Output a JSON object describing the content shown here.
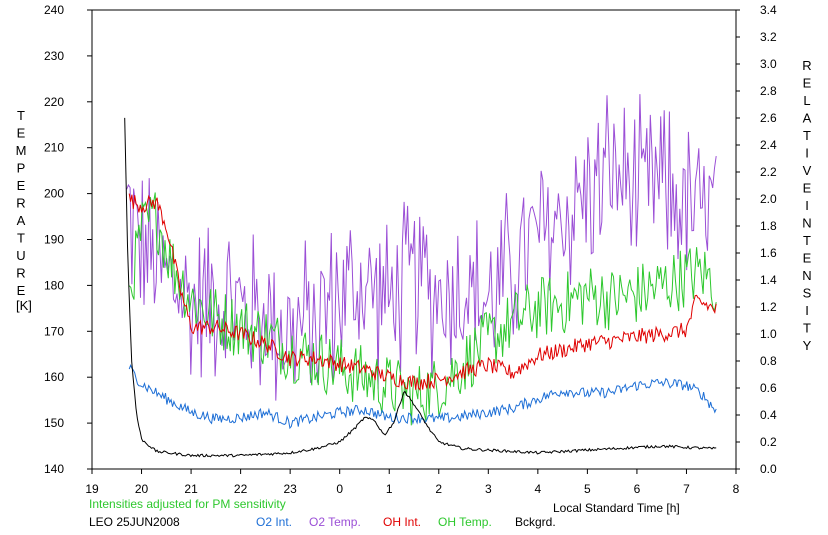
{
  "chart_data": {
    "type": "line",
    "left_axis": {
      "label_letters": [
        "T",
        "E",
        "M",
        "P",
        "E",
        "R",
        "A",
        "T",
        "U",
        "R",
        "E"
      ],
      "unit": "[K]",
      "range": [
        140,
        240
      ],
      "ticks": [
        140,
        150,
        160,
        170,
        180,
        190,
        200,
        210,
        220,
        230,
        240
      ]
    },
    "right_axis": {
      "label_letters": [
        "R",
        "E",
        "L",
        "A",
        "T",
        "I",
        "V",
        "E"
      ],
      "label_letters_2": [
        "I",
        "N",
        "T",
        "E",
        "N",
        "S",
        "I",
        "T",
        "Y"
      ],
      "range": [
        0.0,
        3.4
      ],
      "ticks": [
        "0.0",
        "0.2",
        "0.4",
        "0.6",
        "0.8",
        "1.0",
        "1.2",
        "1.4",
        "1.6",
        "1.8",
        "2.0",
        "2.2",
        "2.4",
        "2.6",
        "2.8",
        "3.0",
        "3.2",
        "3.4"
      ]
    },
    "x_axis": {
      "label": "Local Standard Time [h]",
      "range": [
        19,
        32
      ],
      "tick_labels": [
        "19",
        "20",
        "21",
        "22",
        "23",
        "0",
        "1",
        "2",
        "3",
        "4",
        "5",
        "6",
        "7",
        "8"
      ]
    },
    "note": "Intensities adjusted for PM sensitivity",
    "station_date": "LEO 25JUN2008",
    "legend": [
      {
        "label": "O2 Int.",
        "color": "#1e6fd6"
      },
      {
        "label": "O2 Temp.",
        "color": "#9b4fd6"
      },
      {
        "label": "OH Int.",
        "color": "#e00000"
      },
      {
        "label": "OH Temp.",
        "color": "#2ec82e"
      },
      {
        "label": "Bckgrd.",
        "color": "#000000"
      }
    ],
    "series": [
      {
        "name": "O2 Temp.",
        "axis": "left",
        "color": "#9b4fd6",
        "mean": [
          [
            19.7,
            197
          ],
          [
            20.0,
            188
          ],
          [
            20.5,
            182
          ],
          [
            21.0,
            176
          ],
          [
            21.5,
            178
          ],
          [
            22.0,
            175
          ],
          [
            22.5,
            173
          ],
          [
            23.0,
            170
          ],
          [
            23.5,
            172
          ],
          [
            24.0,
            178
          ],
          [
            24.5,
            180
          ],
          [
            25.0,
            176
          ],
          [
            25.5,
            182
          ],
          [
            26.0,
            178
          ],
          [
            26.5,
            180
          ],
          [
            27.0,
            176
          ],
          [
            27.5,
            184
          ],
          [
            28.0,
            190
          ],
          [
            28.5,
            195
          ],
          [
            29.0,
            200
          ],
          [
            29.5,
            205
          ],
          [
            30.0,
            200
          ],
          [
            30.5,
            202
          ],
          [
            31.0,
            197
          ],
          [
            31.3,
            195
          ],
          [
            31.6,
            198
          ]
        ],
        "amp": 14
      },
      {
        "name": "OH Temp.",
        "axis": "left",
        "color": "#2ec82e",
        "mean": [
          [
            19.75,
            178
          ],
          [
            20.0,
            192
          ],
          [
            20.3,
            195
          ],
          [
            20.6,
            185
          ],
          [
            21.0,
            177
          ],
          [
            21.5,
            173
          ],
          [
            22.0,
            171
          ],
          [
            22.5,
            169
          ],
          [
            23.0,
            166
          ],
          [
            23.5,
            164
          ],
          [
            24.0,
            162
          ],
          [
            24.5,
            160
          ],
          [
            25.0,
            158
          ],
          [
            25.5,
            156
          ],
          [
            26.0,
            158
          ],
          [
            26.5,
            163
          ],
          [
            27.0,
            168
          ],
          [
            27.5,
            172
          ],
          [
            28.0,
            175
          ],
          [
            28.5,
            176
          ],
          [
            29.0,
            178
          ],
          [
            29.5,
            177
          ],
          [
            30.0,
            178
          ],
          [
            30.5,
            180
          ],
          [
            31.0,
            182
          ],
          [
            31.3,
            183
          ],
          [
            31.6,
            180
          ]
        ],
        "amp": 7
      },
      {
        "name": "OH Int.",
        "axis": "right",
        "color": "#e00000",
        "mean": [
          [
            19.75,
            2.0
          ],
          [
            20.0,
            1.95
          ],
          [
            20.3,
            1.98
          ],
          [
            20.5,
            1.8
          ],
          [
            20.8,
            1.3
          ],
          [
            21.0,
            1.05
          ],
          [
            21.5,
            1.05
          ],
          [
            22.0,
            1.0
          ],
          [
            22.5,
            0.93
          ],
          [
            23.0,
            0.82
          ],
          [
            23.5,
            0.82
          ],
          [
            24.0,
            0.78
          ],
          [
            24.5,
            0.74
          ],
          [
            25.0,
            0.68
          ],
          [
            25.5,
            0.64
          ],
          [
            26.0,
            0.66
          ],
          [
            26.5,
            0.72
          ],
          [
            27.0,
            0.77
          ],
          [
            27.5,
            0.71
          ],
          [
            28.0,
            0.84
          ],
          [
            28.5,
            0.88
          ],
          [
            29.0,
            0.93
          ],
          [
            29.5,
            0.95
          ],
          [
            30.0,
            0.98
          ],
          [
            30.5,
            1.0
          ],
          [
            31.0,
            1.03
          ],
          [
            31.2,
            1.25
          ],
          [
            31.6,
            1.18
          ]
        ],
        "amp": 0.06
      },
      {
        "name": "O2 Int.",
        "axis": "right",
        "color": "#1e6fd6",
        "mean": [
          [
            19.75,
            0.75
          ],
          [
            20.0,
            0.63
          ],
          [
            20.5,
            0.52
          ],
          [
            21.0,
            0.42
          ],
          [
            21.5,
            0.37
          ],
          [
            22.0,
            0.38
          ],
          [
            22.5,
            0.42
          ],
          [
            23.0,
            0.34
          ],
          [
            23.5,
            0.38
          ],
          [
            24.0,
            0.42
          ],
          [
            24.5,
            0.44
          ],
          [
            25.0,
            0.38
          ],
          [
            25.5,
            0.38
          ],
          [
            26.0,
            0.37
          ],
          [
            26.5,
            0.39
          ],
          [
            27.0,
            0.42
          ],
          [
            27.5,
            0.45
          ],
          [
            28.0,
            0.52
          ],
          [
            28.5,
            0.58
          ],
          [
            29.0,
            0.56
          ],
          [
            29.5,
            0.57
          ],
          [
            30.0,
            0.62
          ],
          [
            30.5,
            0.64
          ],
          [
            31.0,
            0.62
          ],
          [
            31.3,
            0.56
          ],
          [
            31.6,
            0.43
          ]
        ],
        "amp": 0.04
      },
      {
        "name": "Bckgrd.",
        "axis": "right",
        "color": "#000000",
        "mean": [
          [
            19.66,
            2.6
          ],
          [
            19.72,
            1.6
          ],
          [
            19.8,
            0.8
          ],
          [
            19.9,
            0.4
          ],
          [
            20.0,
            0.22
          ],
          [
            20.3,
            0.13
          ],
          [
            21.0,
            0.1
          ],
          [
            22.0,
            0.1
          ],
          [
            22.5,
            0.11
          ],
          [
            23.0,
            0.12
          ],
          [
            23.5,
            0.15
          ],
          [
            24.0,
            0.2
          ],
          [
            24.3,
            0.3
          ],
          [
            24.5,
            0.38
          ],
          [
            24.7,
            0.36
          ],
          [
            24.9,
            0.25
          ],
          [
            25.1,
            0.35
          ],
          [
            25.3,
            0.58
          ],
          [
            25.5,
            0.48
          ],
          [
            25.8,
            0.3
          ],
          [
            26.0,
            0.2
          ],
          [
            26.5,
            0.15
          ],
          [
            27.0,
            0.14
          ],
          [
            27.5,
            0.13
          ],
          [
            28.0,
            0.12
          ],
          [
            28.5,
            0.13
          ],
          [
            29.0,
            0.14
          ],
          [
            29.5,
            0.15
          ],
          [
            30.0,
            0.16
          ],
          [
            30.5,
            0.17
          ],
          [
            31.0,
            0.16
          ],
          [
            31.6,
            0.15
          ]
        ],
        "amp": 0.01
      }
    ]
  }
}
